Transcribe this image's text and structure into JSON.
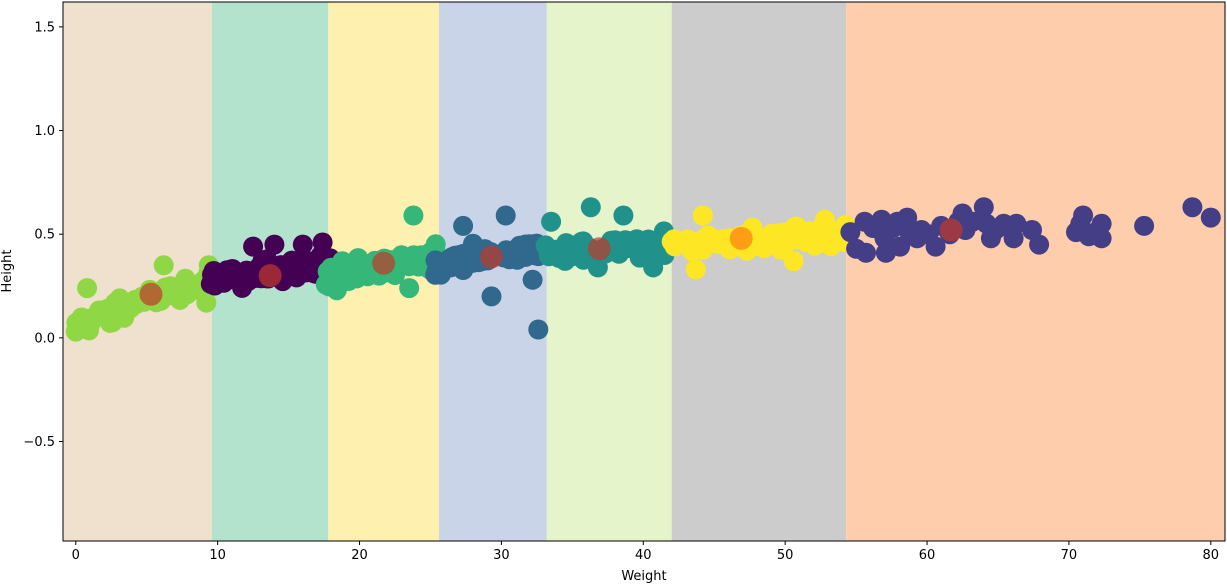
{
  "chart_data": {
    "type": "scatter",
    "title": "",
    "xlabel": "Weight",
    "ylabel": "Height",
    "xlim": [
      -0.9,
      81.0
    ],
    "ylim": [
      -0.98,
      1.62
    ],
    "xticks": [
      0,
      10,
      20,
      30,
      40,
      50,
      60,
      70,
      80
    ],
    "xtick_labels": [
      "0",
      "10",
      "20",
      "30",
      "40",
      "50",
      "60",
      "70",
      "80"
    ],
    "yticks": [
      -0.5,
      0.0,
      0.5,
      1.0,
      1.5
    ],
    "ytick_labels": [
      "−0.5",
      "0.0",
      "0.5",
      "1.0",
      "1.5"
    ],
    "grid": false,
    "regions": [
      {
        "x0": -0.9,
        "x1": 9.6,
        "color": "#efe1cd"
      },
      {
        "x0": 9.6,
        "x1": 17.8,
        "color": "#b3e2cd"
      },
      {
        "x0": 17.8,
        "x1": 25.6,
        "color": "#fef0ae"
      },
      {
        "x0": 25.6,
        "x1": 33.2,
        "color": "#cad4e8"
      },
      {
        "x0": 33.2,
        "x1": 42.0,
        "color": "#e5f4cb"
      },
      {
        "x0": 42.0,
        "x1": 54.3,
        "color": "#cccccc"
      },
      {
        "x0": 54.3,
        "x1": 81.0,
        "color": "#fdcdac"
      }
    ],
    "clusters": [
      {
        "color": "#8fd744",
        "x_range": [
          0,
          9.6
        ],
        "y_range": [
          0.03,
          0.35
        ],
        "trend": [
          0.05,
          0.3
        ],
        "n": 70,
        "extra": [
          [
            0.0,
            0.03
          ],
          [
            0.7,
            0.09
          ],
          [
            0.8,
            0.24
          ],
          [
            6.2,
            0.35
          ],
          [
            9.2,
            0.17
          ]
        ]
      },
      {
        "color": "#440154",
        "x_range": [
          9.5,
          18.0
        ],
        "y_range": [
          0.19,
          0.46
        ],
        "trend": [
          0.28,
          0.36
        ],
        "n": 85,
        "extra": [
          [
            12.5,
            0.44
          ],
          [
            14.0,
            0.45
          ],
          [
            16.0,
            0.45
          ],
          [
            17.4,
            0.46
          ]
        ]
      },
      {
        "color": "#35b779",
        "x_range": [
          17.6,
          25.6
        ],
        "y_range": [
          0.22,
          0.5
        ],
        "trend": [
          0.3,
          0.4
        ],
        "n": 75,
        "extra": [
          [
            18.4,
            0.23
          ],
          [
            23.5,
            0.24
          ],
          [
            23.8,
            0.59
          ]
        ]
      },
      {
        "color": "#31688e",
        "x_range": [
          25.3,
          33.0
        ],
        "y_range": [
          0.25,
          0.59
        ],
        "trend": [
          0.36,
          0.43
        ],
        "n": 70,
        "extra": [
          [
            27.3,
            0.54
          ],
          [
            29.3,
            0.2
          ],
          [
            30.3,
            0.59
          ],
          [
            32.6,
            0.04
          ],
          [
            32.2,
            0.28
          ]
        ]
      },
      {
        "color": "#21918c",
        "x_range": [
          33.0,
          42.0
        ],
        "y_range": [
          0.34,
          0.59
        ],
        "trend": [
          0.4,
          0.47
        ],
        "n": 70,
        "extra": [
          [
            33.5,
            0.56
          ],
          [
            36.3,
            0.63
          ],
          [
            38.6,
            0.59
          ],
          [
            36.8,
            0.34
          ],
          [
            40.7,
            0.34
          ]
        ]
      },
      {
        "color": "#fde725",
        "x_range": [
          42.0,
          54.3
        ],
        "y_range": [
          0.33,
          0.59
        ],
        "trend": [
          0.45,
          0.5
        ],
        "n": 80,
        "extra": [
          [
            43.7,
            0.33
          ],
          [
            44.2,
            0.59
          ],
          [
            50.6,
            0.37
          ],
          [
            52.8,
            0.57
          ]
        ]
      },
      {
        "color": "#433e85",
        "x_range": [
          54.3,
          80.0
        ],
        "y_range": [
          0.41,
          0.63
        ],
        "trend": [
          0.5,
          0.52
        ],
        "n": 0,
        "extra": [
          [
            54.6,
            0.51
          ],
          [
            55.0,
            0.43
          ],
          [
            55.6,
            0.56
          ],
          [
            55.7,
            0.41
          ],
          [
            56.2,
            0.53
          ],
          [
            56.8,
            0.57
          ],
          [
            57.0,
            0.48
          ],
          [
            57.1,
            0.41
          ],
          [
            57.6,
            0.53
          ],
          [
            57.9,
            0.56
          ],
          [
            58.1,
            0.44
          ],
          [
            58.6,
            0.58
          ],
          [
            58.8,
            0.5
          ],
          [
            59.3,
            0.48
          ],
          [
            59.6,
            0.52
          ],
          [
            60.1,
            0.5
          ],
          [
            60.6,
            0.44
          ],
          [
            61.0,
            0.54
          ],
          [
            61.6,
            0.5
          ],
          [
            62.2,
            0.56
          ],
          [
            62.5,
            0.6
          ],
          [
            62.7,
            0.52
          ],
          [
            63.2,
            0.56
          ],
          [
            64.0,
            0.63
          ],
          [
            64.2,
            0.55
          ],
          [
            64.5,
            0.48
          ],
          [
            64.8,
            0.52
          ],
          [
            65.4,
            0.55
          ],
          [
            65.8,
            0.53
          ],
          [
            66.1,
            0.48
          ],
          [
            66.3,
            0.55
          ],
          [
            67.4,
            0.52
          ],
          [
            67.9,
            0.45
          ],
          [
            70.5,
            0.51
          ],
          [
            70.8,
            0.55
          ],
          [
            71.0,
            0.59
          ],
          [
            71.4,
            0.49
          ],
          [
            71.9,
            0.51
          ],
          [
            72.3,
            0.48
          ],
          [
            72.3,
            0.55
          ],
          [
            75.3,
            0.54
          ],
          [
            78.7,
            0.63
          ],
          [
            80.0,
            0.58
          ]
        ]
      }
    ],
    "centroids": [
      {
        "x": 5.3,
        "y": 0.21,
        "color": "#c0392b"
      },
      {
        "x": 13.7,
        "y": 0.3,
        "color": "#c0392b"
      },
      {
        "x": 21.7,
        "y": 0.36,
        "color": "#c0392b"
      },
      {
        "x": 29.3,
        "y": 0.39,
        "color": "#c0392b"
      },
      {
        "x": 36.9,
        "y": 0.43,
        "color": "#c0392b"
      },
      {
        "x": 46.9,
        "y": 0.48,
        "color": "#ff7f0e"
      },
      {
        "x": 61.7,
        "y": 0.52,
        "color": "#c0392b"
      }
    ]
  }
}
